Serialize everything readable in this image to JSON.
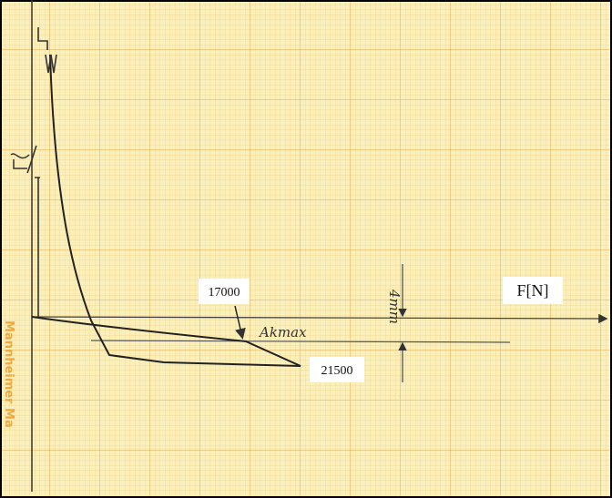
{
  "labels": {
    "force_upper": "17000",
    "force_lower": "21500",
    "axis": "F[N]",
    "gap": "4mm",
    "point": "Akmax",
    "edge": "Mannheimer Ma"
  }
}
